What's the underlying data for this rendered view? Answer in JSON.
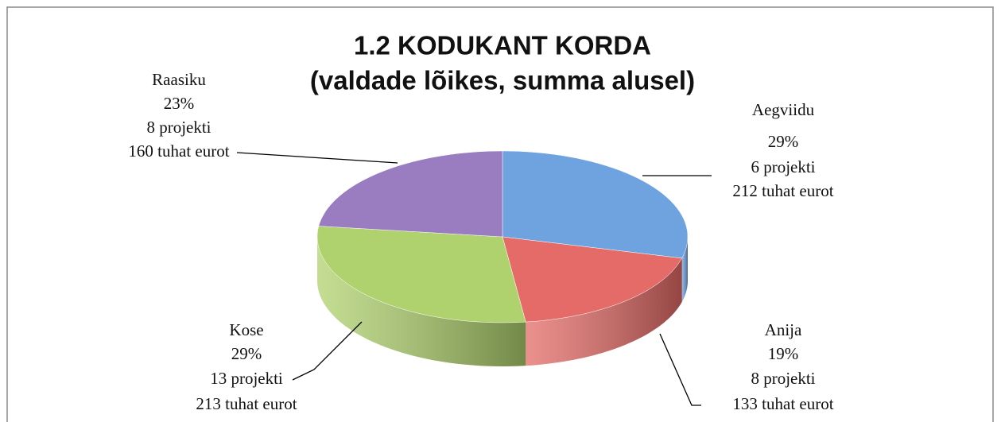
{
  "chart_data": {
    "type": "pie3d",
    "title": "1.2 KODUKANT KORDA",
    "subtitle": "(valdade lõikes, summa alusel)",
    "categories": [
      "Aegviidu",
      "Anija",
      "Kose",
      "Raasiku"
    ],
    "values": [
      29,
      19,
      29,
      23
    ],
    "value_labels": [
      "29%",
      "19%",
      "29%",
      "23%"
    ],
    "project_labels": [
      "6 projekti",
      "8 projekti",
      "13 projekti",
      "8 projekti"
    ],
    "amount_labels": [
      "212 tuhat eurot",
      "133 tuhat eurot",
      "213 tuhat eurot",
      "160 tuhat eurot"
    ],
    "colors": [
      "#6fa3e0",
      "#e46b67",
      "#b0d26e",
      "#9a7cc0"
    ]
  }
}
